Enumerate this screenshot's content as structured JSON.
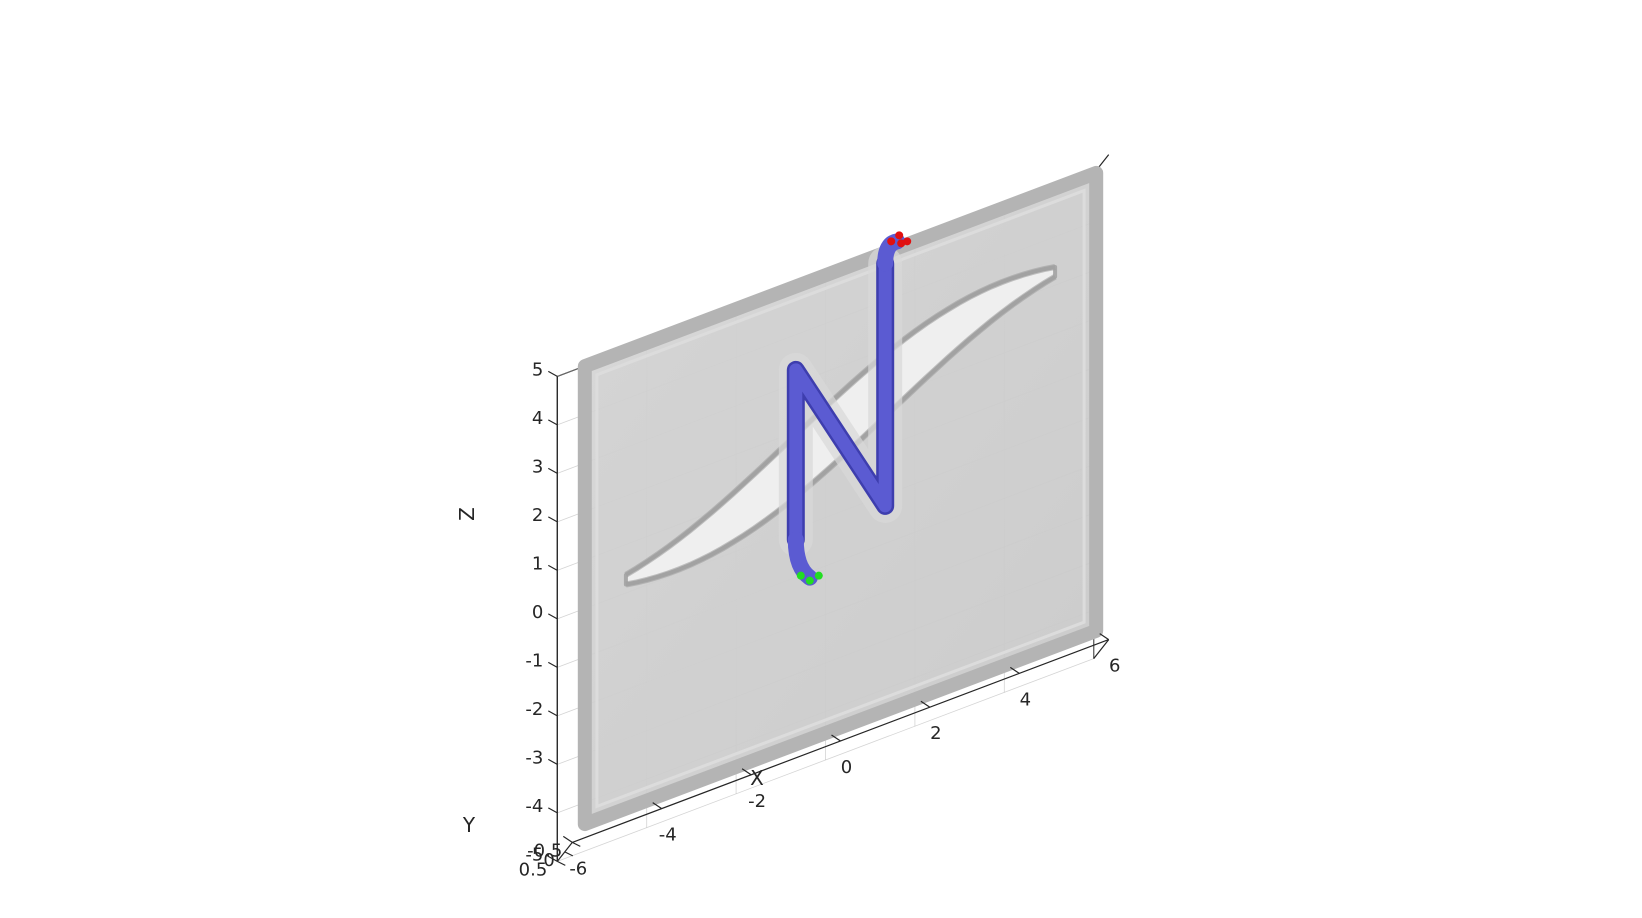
{
  "chart_data": {
    "type": "3d-surface",
    "title": "",
    "xlabel": "X",
    "ylabel": "Y",
    "zlabel": "Z",
    "xlim": [
      -6,
      6
    ],
    "ylim": [
      -0.5,
      0.5
    ],
    "zlim": [
      -5,
      5
    ],
    "x_ticks": [
      "-6",
      "-4",
      "-2",
      "0",
      "2",
      "4",
      "6"
    ],
    "y_ticks": [
      "-0.5",
      "0",
      "0.5"
    ],
    "z_ticks": [
      "-5",
      "-4",
      "-3",
      "-2",
      "-1",
      "0",
      "1",
      "2",
      "3",
      "4",
      "5"
    ],
    "grid": true,
    "view": "3d-isometric",
    "objects": [
      {
        "name": "plate",
        "color": "#c8c8c8",
        "transparent": true,
        "x_range": [
          -6,
          6
        ],
        "y_range": [
          -0.5,
          0.5
        ],
        "z_range": [
          -5,
          5
        ]
      },
      {
        "name": "lens-shaped slot",
        "color": "#b9b9b9",
        "x_range": [
          -5,
          5
        ],
        "z_range": [
          0,
          3
        ]
      },
      {
        "name": "N-shaped channel",
        "color": "#5b5bd2",
        "path": [
          [
            -1,
            -0.5
          ],
          [
            -1,
            3
          ],
          [
            1,
            -0.5
          ],
          [
            1,
            4.5
          ]
        ],
        "start": [
          -1,
          -0.5
        ],
        "end": [
          1,
          4.5
        ]
      },
      {
        "name": "start markers",
        "color": "#22dd22",
        "position": [
          -1,
          -0.5
        ]
      },
      {
        "name": "end markers",
        "color": "#e01010",
        "position": [
          1,
          4.5
        ]
      }
    ]
  },
  "colors": {
    "plate_fill": "#cfcfcf",
    "plate_edge": "#b4b4b4",
    "channel": "#5b5bd2",
    "channel_dark": "#3e3eae",
    "start_marker": "#22dd22",
    "end_marker": "#e01010",
    "axis": "#262626",
    "grid": "#b0b0b0"
  }
}
